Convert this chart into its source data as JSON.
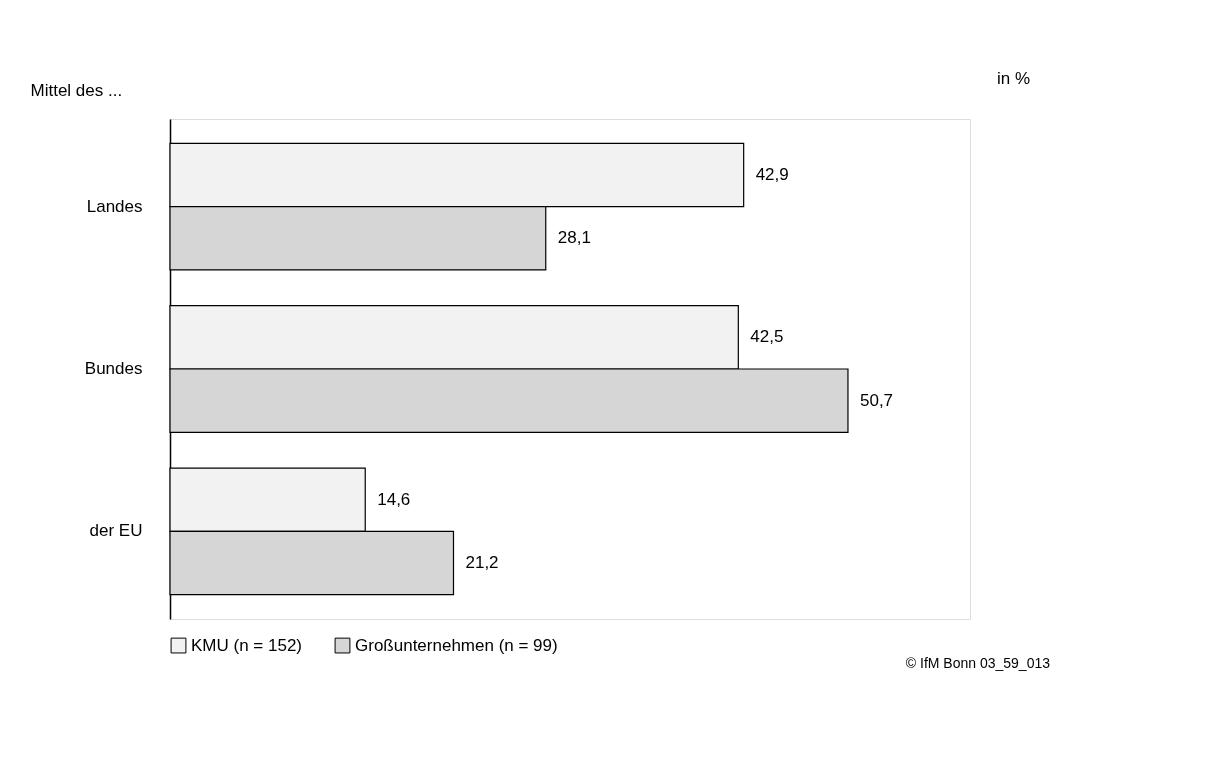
{
  "chart_data": {
    "type": "bar",
    "orientation": "horizontal",
    "ylabel": "Mittel des ...",
    "categories": [
      "Landes",
      "Bundes",
      "der EU"
    ],
    "series": [
      {
        "name": "KMU (n = 152)",
        "color": "#f2f2f2",
        "values": [
          42.9,
          42.5,
          14.6
        ],
        "value_labels": [
          "42,9",
          "42,5",
          "14,6"
        ]
      },
      {
        "name": "Großunternehmen (n = 99)",
        "color": "#d6d6d6",
        "values": [
          28.1,
          50.7,
          21.2
        ],
        "value_labels": [
          "28,1",
          "50,7",
          "21,2"
        ]
      }
    ],
    "legend": "bottom",
    "annotations": [
      "in %",
      "© IfM Bonn 03_59_013"
    ]
  }
}
